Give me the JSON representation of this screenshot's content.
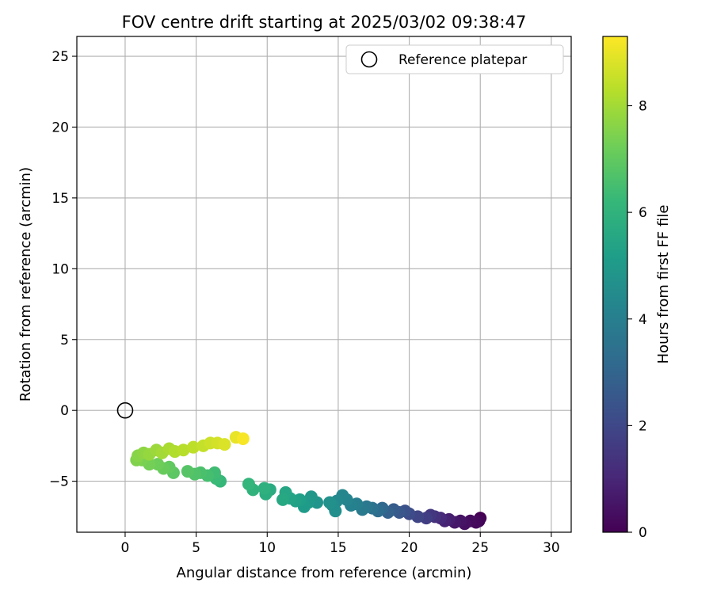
{
  "chart_data": {
    "type": "scatter",
    "title": "FOV centre drift starting at 2025/03/02 09:38:47",
    "xlabel": "Angular distance from reference (arcmin)",
    "ylabel": "Rotation from reference (arcmin)",
    "xlim": [
      -3.4,
      31.4
    ],
    "ylim": [
      -8.6,
      26.4
    ],
    "xticks": [
      0,
      5,
      10,
      15,
      20,
      25,
      30
    ],
    "yticks": [
      -5,
      0,
      5,
      10,
      15,
      20,
      25
    ],
    "grid": true,
    "legend": {
      "location": "top-right",
      "entries": [
        "Reference platepar"
      ]
    },
    "reference_point": {
      "label": "Reference platepar",
      "x": 0,
      "y": 0,
      "marker": "open-circle"
    },
    "colorbar": {
      "label": "Hours from first FF file",
      "range": [
        0,
        9.3
      ],
      "ticks": [
        0,
        2,
        4,
        6,
        8
      ],
      "colormap": "viridis"
    },
    "series": [
      {
        "color_dimension": "Hours from first FF file",
        "points": [
          {
            "x": 25.0,
            "y": -7.6,
            "c": 0.0
          },
          {
            "x": 24.9,
            "y": -7.8,
            "c": 0.1
          },
          {
            "x": 24.7,
            "y": -7.9,
            "c": 0.2
          },
          {
            "x": 24.3,
            "y": -7.8,
            "c": 0.3
          },
          {
            "x": 23.9,
            "y": -8.0,
            "c": 0.4
          },
          {
            "x": 23.6,
            "y": -7.8,
            "c": 0.5
          },
          {
            "x": 23.2,
            "y": -7.9,
            "c": 0.6
          },
          {
            "x": 22.8,
            "y": -7.7,
            "c": 0.8
          },
          {
            "x": 22.5,
            "y": -7.8,
            "c": 0.9
          },
          {
            "x": 22.2,
            "y": -7.6,
            "c": 1.1
          },
          {
            "x": 21.8,
            "y": -7.5,
            "c": 1.3
          },
          {
            "x": 21.5,
            "y": -7.4,
            "c": 1.5
          },
          {
            "x": 21.2,
            "y": -7.6,
            "c": 1.7
          },
          {
            "x": 20.6,
            "y": -7.5,
            "c": 1.9
          },
          {
            "x": 20.0,
            "y": -7.3,
            "c": 2.1
          },
          {
            "x": 19.7,
            "y": -7.1,
            "c": 2.3
          },
          {
            "x": 19.3,
            "y": -7.2,
            "c": 2.5
          },
          {
            "x": 18.9,
            "y": -7.0,
            "c": 2.7
          },
          {
            "x": 18.5,
            "y": -7.2,
            "c": 2.9
          },
          {
            "x": 18.1,
            "y": -6.9,
            "c": 3.1
          },
          {
            "x": 17.8,
            "y": -7.1,
            "c": 3.3
          },
          {
            "x": 17.4,
            "y": -6.9,
            "c": 3.5
          },
          {
            "x": 17.0,
            "y": -6.8,
            "c": 3.7
          },
          {
            "x": 16.7,
            "y": -7.0,
            "c": 3.8
          },
          {
            "x": 16.3,
            "y": -6.6,
            "c": 4.0
          },
          {
            "x": 15.9,
            "y": -6.7,
            "c": 4.1
          },
          {
            "x": 15.6,
            "y": -6.3,
            "c": 4.2
          },
          {
            "x": 15.3,
            "y": -6.0,
            "c": 4.3
          },
          {
            "x": 14.9,
            "y": -6.4,
            "c": 4.4
          },
          {
            "x": 14.6,
            "y": -6.7,
            "c": 4.5
          },
          {
            "x": 14.8,
            "y": -7.1,
            "c": 4.6
          },
          {
            "x": 14.4,
            "y": -6.5,
            "c": 4.7
          },
          {
            "x": 13.5,
            "y": -6.5,
            "c": 4.8
          },
          {
            "x": 13.1,
            "y": -6.1,
            "c": 4.9
          },
          {
            "x": 12.9,
            "y": -6.5,
            "c": 5.0
          },
          {
            "x": 12.6,
            "y": -6.8,
            "c": 5.1
          },
          {
            "x": 12.3,
            "y": -6.3,
            "c": 5.2
          },
          {
            "x": 12.0,
            "y": -6.4,
            "c": 5.3
          },
          {
            "x": 11.6,
            "y": -6.2,
            "c": 5.4
          },
          {
            "x": 11.3,
            "y": -5.8,
            "c": 5.5
          },
          {
            "x": 11.1,
            "y": -6.3,
            "c": 5.6
          },
          {
            "x": 10.2,
            "y": -5.6,
            "c": 5.7
          },
          {
            "x": 9.9,
            "y": -5.9,
            "c": 5.8
          },
          {
            "x": 9.8,
            "y": -5.5,
            "c": 5.9
          },
          {
            "x": 9.0,
            "y": -5.6,
            "c": 6.0
          },
          {
            "x": 8.7,
            "y": -5.2,
            "c": 6.1
          },
          {
            "x": 6.7,
            "y": -5.0,
            "c": 6.2
          },
          {
            "x": 6.4,
            "y": -4.8,
            "c": 6.3
          },
          {
            "x": 6.3,
            "y": -4.4,
            "c": 6.4
          },
          {
            "x": 5.8,
            "y": -4.6,
            "c": 6.5
          },
          {
            "x": 5.3,
            "y": -4.4,
            "c": 6.6
          },
          {
            "x": 4.9,
            "y": -4.5,
            "c": 6.7
          },
          {
            "x": 4.4,
            "y": -4.3,
            "c": 6.8
          },
          {
            "x": 3.4,
            "y": -4.4,
            "c": 6.9
          },
          {
            "x": 3.1,
            "y": -4.0,
            "c": 7.0
          },
          {
            "x": 2.7,
            "y": -4.1,
            "c": 7.1
          },
          {
            "x": 2.3,
            "y": -3.8,
            "c": 7.2
          },
          {
            "x": 1.7,
            "y": -3.8,
            "c": 7.3
          },
          {
            "x": 1.2,
            "y": -3.5,
            "c": 7.4
          },
          {
            "x": 0.8,
            "y": -3.5,
            "c": 7.5
          },
          {
            "x": 0.9,
            "y": -3.2,
            "c": 7.6
          },
          {
            "x": 1.3,
            "y": -3.0,
            "c": 7.7
          },
          {
            "x": 1.7,
            "y": -3.1,
            "c": 7.8
          },
          {
            "x": 2.2,
            "y": -2.8,
            "c": 7.9
          },
          {
            "x": 2.6,
            "y": -3.0,
            "c": 8.0
          },
          {
            "x": 3.1,
            "y": -2.7,
            "c": 8.1
          },
          {
            "x": 3.5,
            "y": -2.9,
            "c": 8.2
          },
          {
            "x": 4.1,
            "y": -2.8,
            "c": 8.3
          },
          {
            "x": 4.8,
            "y": -2.6,
            "c": 8.4
          },
          {
            "x": 5.5,
            "y": -2.5,
            "c": 8.5
          },
          {
            "x": 6.0,
            "y": -2.3,
            "c": 8.6
          },
          {
            "x": 6.5,
            "y": -2.3,
            "c": 8.7
          },
          {
            "x": 7.0,
            "y": -2.4,
            "c": 8.8
          },
          {
            "x": 7.8,
            "y": -1.9,
            "c": 9.0
          },
          {
            "x": 8.3,
            "y": -2.0,
            "c": 9.2
          }
        ]
      }
    ]
  }
}
